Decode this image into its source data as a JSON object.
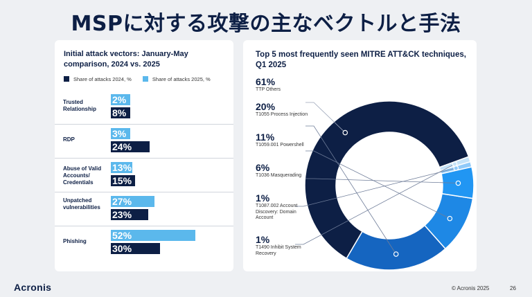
{
  "title": "MSPに対する攻撃の主なベクトルと手法",
  "colors": {
    "navy": "#0d1f45",
    "light_blue": "#5bb8ec",
    "mid_blue": "#1565c0",
    "blue": "#1e88e5",
    "bright_blue": "#2196f3",
    "pale_blue": "#90caf9"
  },
  "chart_data": [
    {
      "type": "bar",
      "orientation": "horizontal",
      "title": "Initial attack vectors: January-May comparison, 2024 vs. 2025",
      "legend_position": "top-left",
      "categories": [
        "Trusted Relationship",
        "RDP",
        "Abuse of Valid Accounts/ Credentials",
        "Unpatched vulnerabilities",
        "Phishing"
      ],
      "series": [
        {
          "name": "Share of attacks 2025, %",
          "values": [
            2,
            3,
            13,
            27,
            52
          ],
          "labels": [
            "2%",
            "3%",
            "13%",
            "27%",
            "52%"
          ]
        },
        {
          "name": "Share of attacks 2024, %",
          "values": [
            8,
            24,
            15,
            23,
            30
          ],
          "labels": [
            "8%",
            "24%",
            "15%",
            "23%",
            "30%"
          ]
        }
      ],
      "legend": [
        "Share of attacks 2024, %",
        "Share of attacks 2025, %"
      ]
    },
    {
      "type": "pie",
      "donut": true,
      "title": "Top 5 most frequently seen MITRE ATT&CK techniques, Q1 2025",
      "slices": [
        {
          "pct_label": "61%",
          "name": "TTP Others",
          "value": 61
        },
        {
          "pct_label": "20%",
          "name": "T1055 Process Injection",
          "value": 20
        },
        {
          "pct_label": "11%",
          "name": "T1059.001 Powershell",
          "value": 11
        },
        {
          "pct_label": "6%",
          "name": "T1036 Masquerading",
          "value": 6
        },
        {
          "pct_label": "1%",
          "name": "T1087.002 Account Discovery: Domain Account",
          "value": 1
        },
        {
          "pct_label": "1%",
          "name": "T1490 Inhibit System Recovery",
          "value": 1
        }
      ]
    }
  ],
  "footer": {
    "logo": "Acronis",
    "copyright": "© Acronis 2025",
    "page": "26"
  }
}
